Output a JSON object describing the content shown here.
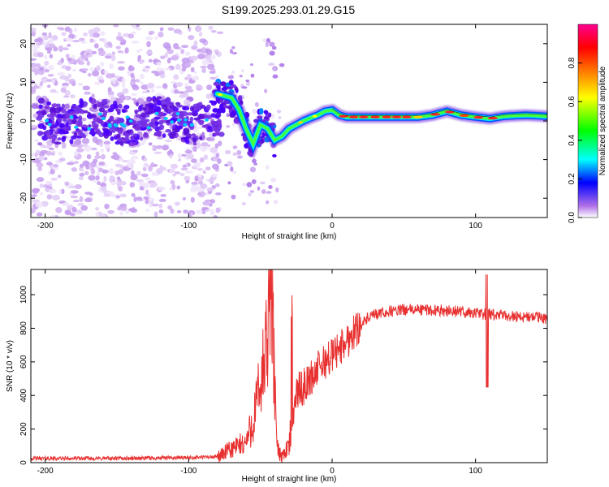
{
  "title": "S199.2025.293.01.29.G15",
  "chart_data": [
    {
      "type": "heatmap",
      "xlabel": "Height of straight line (km)",
      "ylabel": "Frequency (Hz)",
      "xlim": [
        -210,
        150
      ],
      "ylim": [
        -25,
        25
      ],
      "x_ticks": [
        {
          "value": -200,
          "label": "-200"
        },
        {
          "value": -100,
          "label": "-100"
        },
        {
          "value": 0,
          "label": "0"
        },
        {
          "value": 100,
          "label": "100"
        }
      ],
      "y_ticks": [
        {
          "value": 20,
          "label": "20"
        },
        {
          "value": 10,
          "label": "10"
        },
        {
          "value": 0,
          "label": "0"
        },
        {
          "value": -10,
          "label": "-10"
        },
        {
          "value": -20,
          "label": "-20"
        }
      ],
      "ridge": [
        {
          "x": -80,
          "y": 7
        },
        {
          "x": -70,
          "y": 6
        },
        {
          "x": -65,
          "y": 3
        },
        {
          "x": -60,
          "y": -2
        },
        {
          "x": -55,
          "y": -6
        },
        {
          "x": -50,
          "y": -1
        },
        {
          "x": -45,
          "y": -2
        },
        {
          "x": -40,
          "y": -5
        },
        {
          "x": -35,
          "y": -4
        },
        {
          "x": -30,
          "y": -2
        },
        {
          "x": -25,
          "y": -1
        },
        {
          "x": -20,
          "y": 0
        },
        {
          "x": -15,
          "y": 0.8
        },
        {
          "x": -10,
          "y": 1.5
        },
        {
          "x": -5,
          "y": 2.5
        },
        {
          "x": 0,
          "y": 2.8
        },
        {
          "x": 5,
          "y": 1.5
        },
        {
          "x": 10,
          "y": 1
        },
        {
          "x": 20,
          "y": 1
        },
        {
          "x": 40,
          "y": 1
        },
        {
          "x": 60,
          "y": 1
        },
        {
          "x": 70,
          "y": 1.5
        },
        {
          "x": 80,
          "y": 2.5
        },
        {
          "x": 90,
          "y": 1.5
        },
        {
          "x": 100,
          "y": 1
        },
        {
          "x": 110,
          "y": 0.6
        },
        {
          "x": 120,
          "y": 1.2
        },
        {
          "x": 135,
          "y": 1.5
        },
        {
          "x": 150,
          "y": 1.2
        }
      ],
      "colorbar": {
        "label": "Normalized spectral amplitude",
        "range": [
          0,
          1
        ],
        "ticks": [
          {
            "value": 0.0,
            "label": "0.0"
          },
          {
            "value": 0.2,
            "label": "0.2"
          },
          {
            "value": 0.4,
            "label": "0.4"
          },
          {
            "value": 0.6,
            "label": "0.6"
          },
          {
            "value": 0.8,
            "label": "0.8"
          }
        ],
        "colors": [
          "#ffffff",
          "#b070e8",
          "#0000ff",
          "#00ffff",
          "#00ff00",
          "#ffff00",
          "#ff8000",
          "#ff0000",
          "#ff0090"
        ]
      }
    },
    {
      "type": "line",
      "xlabel": "Height of straight line (km)",
      "ylabel": "SNR (10 * v/v)",
      "xlim": [
        -210,
        150
      ],
      "ylim": [
        0,
        1150
      ],
      "x_ticks": [
        {
          "value": -200,
          "label": "-200"
        },
        {
          "value": -100,
          "label": "-100"
        },
        {
          "value": 0,
          "label": "0"
        },
        {
          "value": 100,
          "label": "100"
        }
      ],
      "y_ticks": [
        {
          "value": 0,
          "label": "0"
        },
        {
          "value": 200,
          "label": "200"
        },
        {
          "value": 400,
          "label": "400"
        },
        {
          "value": 600,
          "label": "600"
        },
        {
          "value": 800,
          "label": "800"
        },
        {
          "value": 1000,
          "label": "1000"
        }
      ],
      "series": [
        {
          "name": "SNR",
          "color": "#e83030",
          "x": [
            -210,
            -150,
            -100,
            -80,
            -70,
            -60,
            -55,
            -50,
            -45,
            -42,
            -40,
            -38,
            -35,
            -30,
            -25,
            -20,
            -15,
            -10,
            -5,
            0,
            5,
            10,
            15,
            20,
            25,
            30,
            40,
            50,
            60,
            80,
            100,
            110,
            120,
            150
          ],
          "values": [
            25,
            25,
            30,
            35,
            80,
            120,
            250,
            450,
            700,
            1150,
            400,
            80,
            40,
            100,
            420,
            450,
            500,
            560,
            600,
            640,
            680,
            720,
            780,
            820,
            860,
            880,
            900,
            910,
            910,
            905,
            890,
            880,
            875,
            860
          ]
        }
      ]
    }
  ]
}
